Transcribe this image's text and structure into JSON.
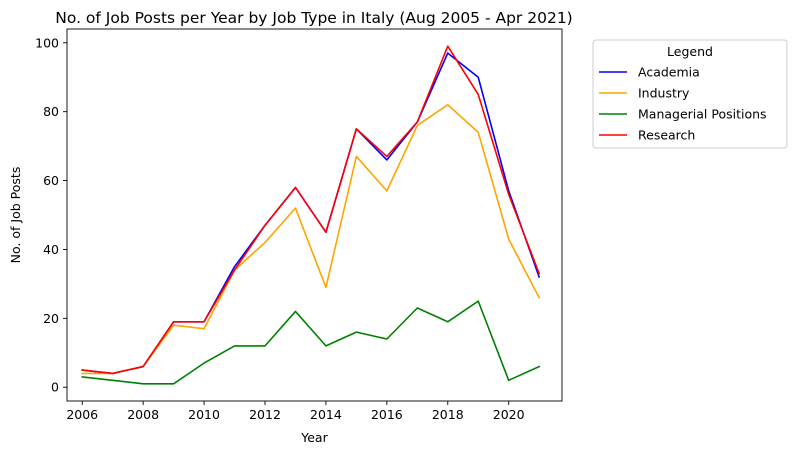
{
  "chart_data": {
    "type": "line",
    "title": "No. of Job Posts per Year by Job Type in Italy (Aug 2005 - Apr 2021)",
    "xlabel": "Year",
    "ylabel": "No. of Job Posts",
    "x": [
      2006,
      2007,
      2008,
      2009,
      2010,
      2011,
      2012,
      2013,
      2014,
      2015,
      2016,
      2017,
      2018,
      2019,
      2020,
      2021
    ],
    "xlim": [
      2005.5,
      2021.75
    ],
    "ylim": [
      -4,
      104
    ],
    "xticks": [
      2006,
      2008,
      2010,
      2012,
      2014,
      2016,
      2018,
      2020
    ],
    "xtick_labels": [
      "2006",
      "2008",
      "2010",
      "2012",
      "2014",
      "2016",
      "2018",
      "2020"
    ],
    "yticks": [
      0,
      20,
      40,
      60,
      80,
      100
    ],
    "ytick_labels": [
      "0",
      "20",
      "40",
      "60",
      "80",
      "100"
    ],
    "grid": false,
    "legend": {
      "title": "Legend",
      "position": "outside-right"
    },
    "series": [
      {
        "name": "Academia",
        "color": "#0000ff",
        "values": [
          5,
          4,
          6,
          19,
          19,
          35,
          47,
          58,
          45,
          75,
          66,
          77,
          97,
          90,
          57,
          32
        ]
      },
      {
        "name": "Industry",
        "color": "#ffa500",
        "values": [
          4,
          4,
          6,
          18,
          17,
          34,
          42,
          52,
          29,
          67,
          57,
          76,
          82,
          74,
          43,
          26
        ]
      },
      {
        "name": "Managerial Positions",
        "color": "#008000",
        "values": [
          3,
          2,
          1,
          1,
          7,
          12,
          12,
          22,
          12,
          16,
          14,
          23,
          19,
          25,
          2,
          6
        ]
      },
      {
        "name": "Research",
        "color": "#ff0000",
        "values": [
          5,
          4,
          6,
          19,
          19,
          34,
          47,
          58,
          45,
          75,
          67,
          77,
          99,
          85,
          56,
          33
        ]
      }
    ]
  }
}
